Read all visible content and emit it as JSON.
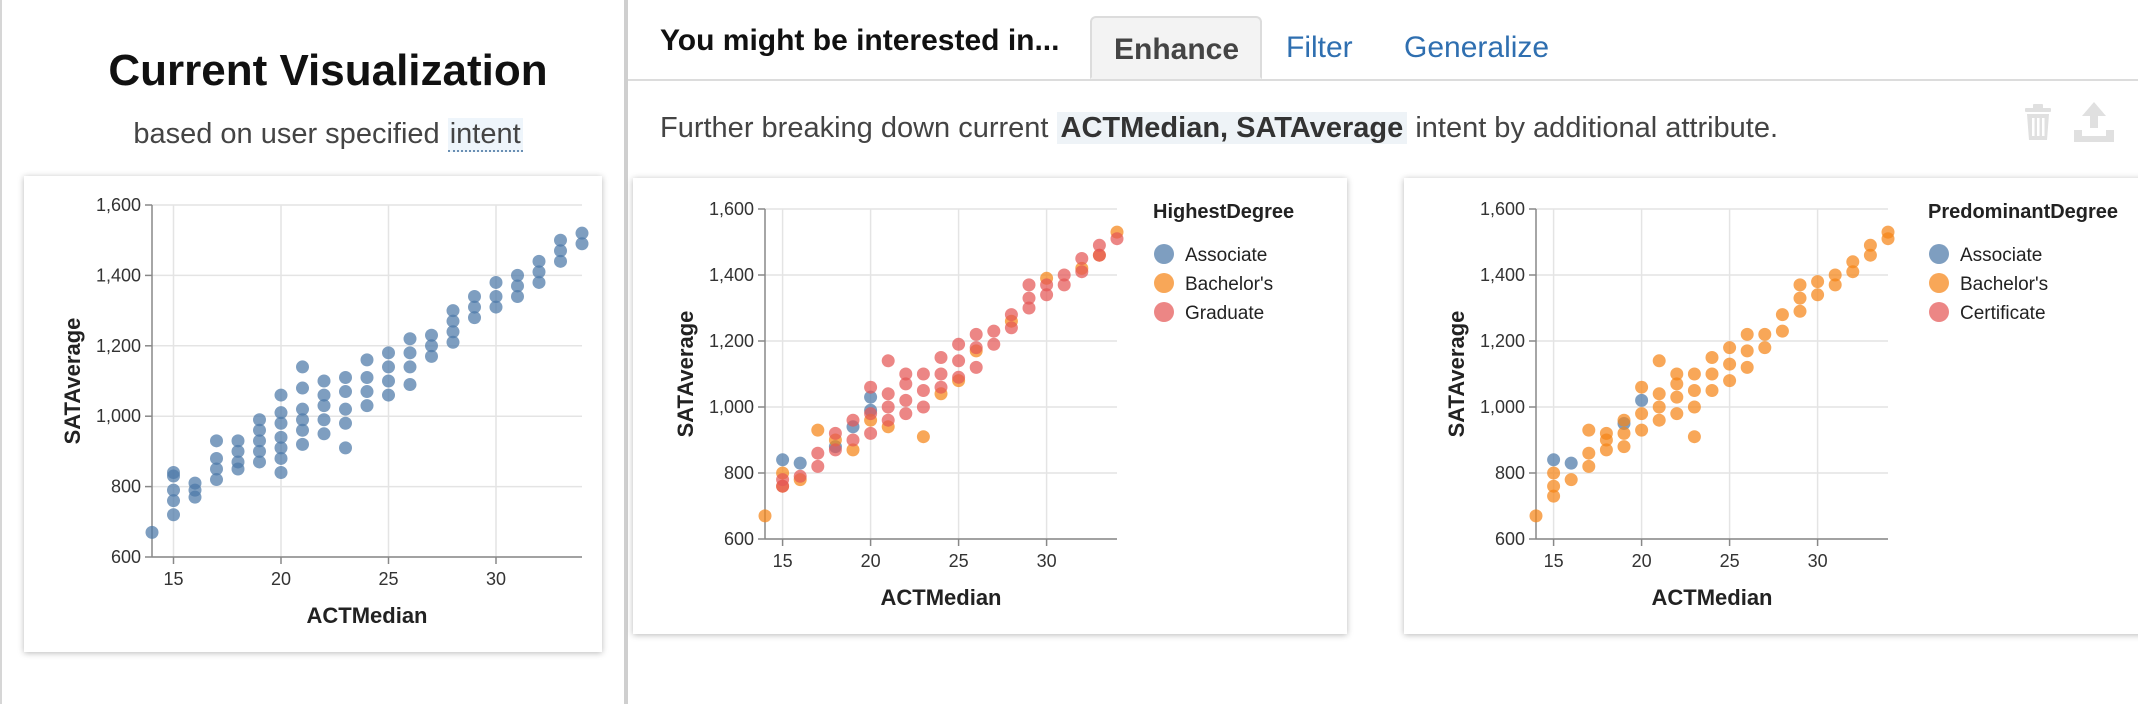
{
  "left": {
    "title": "Current Visualization",
    "subtitle_prefix": "based on user specified",
    "subtitle_intent": "intent"
  },
  "right": {
    "heading": "You might be interested in...",
    "tabs": [
      {
        "label": "Enhance",
        "active": true
      },
      {
        "label": "Filter",
        "active": false
      },
      {
        "label": "Generalize",
        "active": false
      }
    ],
    "description_prefix": "Further breaking down current",
    "description_highlight": "ACTMedian, SATAverage",
    "description_suffix": "intent by additional attribute.",
    "icons": [
      "trash-icon",
      "export-icon"
    ]
  },
  "colors": {
    "blue": "#4c78a8",
    "orange": "#f58518",
    "red": "#e45756",
    "link": "#2f6fb0"
  },
  "chart_data": [
    {
      "type": "scatter",
      "xlabel": "ACTMedian",
      "ylabel": "SATAverage",
      "xlim": [
        14,
        34
      ],
      "ylim": [
        600,
        1600
      ],
      "xticks": [
        "15",
        "20",
        "25",
        "30"
      ],
      "yticks": [
        "600",
        "800",
        "1,000",
        "1,200",
        "1,400",
        "1,600"
      ],
      "grid": true,
      "series": [
        {
          "color": "#4c78a8",
          "points": [
            [
              14,
              670
            ],
            [
              15,
              720
            ],
            [
              15,
              760
            ],
            [
              15,
              790
            ],
            [
              15,
              830
            ],
            [
              15,
              840
            ],
            [
              16,
              770
            ],
            [
              16,
              790
            ],
            [
              16,
              810
            ],
            [
              17,
              820
            ],
            [
              17,
              850
            ],
            [
              17,
              880
            ],
            [
              17,
              930
            ],
            [
              18,
              850
            ],
            [
              18,
              870
            ],
            [
              18,
              900
            ],
            [
              18,
              930
            ],
            [
              19,
              870
            ],
            [
              19,
              900
            ],
            [
              19,
              930
            ],
            [
              19,
              960
            ],
            [
              19,
              990
            ],
            [
              20,
              840
            ],
            [
              20,
              880
            ],
            [
              20,
              910
            ],
            [
              20,
              940
            ],
            [
              20,
              980
            ],
            [
              20,
              1010
            ],
            [
              20,
              1060
            ],
            [
              21,
              920
            ],
            [
              21,
              960
            ],
            [
              21,
              990
            ],
            [
              21,
              1020
            ],
            [
              21,
              1080
            ],
            [
              21,
              1140
            ],
            [
              22,
              950
            ],
            [
              22,
              990
            ],
            [
              22,
              1030
            ],
            [
              22,
              1060
            ],
            [
              22,
              1100
            ],
            [
              23,
              910
            ],
            [
              23,
              980
            ],
            [
              23,
              1020
            ],
            [
              23,
              1070
            ],
            [
              23,
              1110
            ],
            [
              24,
              1030
            ],
            [
              24,
              1070
            ],
            [
              24,
              1110
            ],
            [
              24,
              1160
            ],
            [
              25,
              1060
            ],
            [
              25,
              1100
            ],
            [
              25,
              1140
            ],
            [
              25,
              1180
            ],
            [
              26,
              1090
            ],
            [
              26,
              1140
            ],
            [
              26,
              1180
            ],
            [
              26,
              1220
            ],
            [
              27,
              1170
            ],
            [
              27,
              1200
            ],
            [
              27,
              1230
            ],
            [
              28,
              1210
            ],
            [
              28,
              1240
            ],
            [
              28,
              1270
            ],
            [
              28,
              1300
            ],
            [
              29,
              1280
            ],
            [
              29,
              1310
            ],
            [
              29,
              1340
            ],
            [
              30,
              1310
            ],
            [
              30,
              1340
            ],
            [
              30,
              1380
            ],
            [
              31,
              1340
            ],
            [
              31,
              1370
            ],
            [
              31,
              1400
            ],
            [
              32,
              1380
            ],
            [
              32,
              1410
            ],
            [
              32,
              1440
            ],
            [
              33,
              1440
            ],
            [
              33,
              1470
            ],
            [
              33,
              1500
            ],
            [
              34,
              1490
            ],
            [
              34,
              1520
            ]
          ]
        }
      ]
    },
    {
      "type": "scatter",
      "xlabel": "ACTMedian",
      "ylabel": "SATAverage",
      "legend_title": "HighestDegree",
      "legend_position": "right",
      "xlim": [
        14,
        34
      ],
      "ylim": [
        600,
        1600
      ],
      "xticks": [
        "15",
        "20",
        "25",
        "30"
      ],
      "yticks": [
        "600",
        "800",
        "1,000",
        "1,200",
        "1,400",
        "1,600"
      ],
      "grid": true,
      "series": [
        {
          "name": "Associate",
          "color": "#4c78a8",
          "points": [
            [
              15,
              840
            ],
            [
              16,
              830
            ],
            [
              18,
              880
            ],
            [
              19,
              940
            ],
            [
              20,
              1030
            ],
            [
              20,
              990
            ]
          ]
        },
        {
          "name": "Bachelor's",
          "color": "#f58518",
          "points": [
            [
              14,
              670
            ],
            [
              15,
              760
            ],
            [
              15,
              800
            ],
            [
              16,
              780
            ],
            [
              17,
              930
            ],
            [
              18,
              900
            ],
            [
              19,
              870
            ],
            [
              20,
              960
            ],
            [
              21,
              940
            ],
            [
              23,
              910
            ],
            [
              24,
              1040
            ],
            [
              25,
              1080
            ],
            [
              26,
              1170
            ],
            [
              28,
              1260
            ],
            [
              30,
              1390
            ],
            [
              32,
              1420
            ],
            [
              33,
              1460
            ],
            [
              34,
              1530
            ]
          ]
        },
        {
          "name": "Graduate",
          "color": "#e45756",
          "points": [
            [
              15,
              760
            ],
            [
              15,
              780
            ],
            [
              16,
              790
            ],
            [
              17,
              820
            ],
            [
              17,
              860
            ],
            [
              18,
              870
            ],
            [
              18,
              920
            ],
            [
              19,
              900
            ],
            [
              19,
              960
            ],
            [
              20,
              920
            ],
            [
              20,
              980
            ],
            [
              20,
              1060
            ],
            [
              21,
              960
            ],
            [
              21,
              1000
            ],
            [
              21,
              1040
            ],
            [
              21,
              1140
            ],
            [
              22,
              980
            ],
            [
              22,
              1020
            ],
            [
              22,
              1070
            ],
            [
              22,
              1100
            ],
            [
              23,
              1000
            ],
            [
              23,
              1050
            ],
            [
              23,
              1100
            ],
            [
              24,
              1060
            ],
            [
              24,
              1100
            ],
            [
              24,
              1150
            ],
            [
              25,
              1090
            ],
            [
              25,
              1140
            ],
            [
              25,
              1190
            ],
            [
              26,
              1120
            ],
            [
              26,
              1180
            ],
            [
              26,
              1220
            ],
            [
              27,
              1190
            ],
            [
              27,
              1230
            ],
            [
              28,
              1240
            ],
            [
              28,
              1280
            ],
            [
              29,
              1300
            ],
            [
              29,
              1330
            ],
            [
              29,
              1370
            ],
            [
              30,
              1340
            ],
            [
              30,
              1370
            ],
            [
              31,
              1370
            ],
            [
              31,
              1400
            ],
            [
              32,
              1410
            ],
            [
              32,
              1450
            ],
            [
              33,
              1460
            ],
            [
              33,
              1490
            ],
            [
              34,
              1510
            ]
          ]
        }
      ]
    },
    {
      "type": "scatter",
      "xlabel": "ACTMedian",
      "ylabel": "SATAverage",
      "legend_title": "PredominantDegree",
      "legend_position": "right",
      "xlim": [
        14,
        34
      ],
      "ylim": [
        600,
        1600
      ],
      "xticks": [
        "15",
        "20",
        "25",
        "30"
      ],
      "yticks": [
        "600",
        "800",
        "1,000",
        "1,200",
        "1,400",
        "1,600"
      ],
      "grid": true,
      "series": [
        {
          "name": "Associate",
          "color": "#4c78a8",
          "points": [
            [
              15,
              840
            ],
            [
              16,
              830
            ],
            [
              19,
              950
            ],
            [
              20,
              1020
            ]
          ]
        },
        {
          "name": "Bachelor's",
          "color": "#f58518",
          "points": [
            [
              14,
              670
            ],
            [
              15,
              730
            ],
            [
              15,
              760
            ],
            [
              15,
              800
            ],
            [
              16,
              780
            ],
            [
              17,
              820
            ],
            [
              17,
              860
            ],
            [
              17,
              930
            ],
            [
              18,
              870
            ],
            [
              18,
              900
            ],
            [
              18,
              920
            ],
            [
              19,
              880
            ],
            [
              19,
              920
            ],
            [
              19,
              960
            ],
            [
              20,
              930
            ],
            [
              20,
              980
            ],
            [
              20,
              1060
            ],
            [
              21,
              960
            ],
            [
              21,
              1000
            ],
            [
              21,
              1040
            ],
            [
              21,
              1140
            ],
            [
              22,
              980
            ],
            [
              22,
              1030
            ],
            [
              22,
              1070
            ],
            [
              22,
              1100
            ],
            [
              23,
              910
            ],
            [
              23,
              1000
            ],
            [
              23,
              1050
            ],
            [
              23,
              1100
            ],
            [
              24,
              1050
            ],
            [
              24,
              1100
            ],
            [
              24,
              1150
            ],
            [
              25,
              1080
            ],
            [
              25,
              1130
            ],
            [
              25,
              1180
            ],
            [
              26,
              1120
            ],
            [
              26,
              1170
            ],
            [
              26,
              1220
            ],
            [
              27,
              1180
            ],
            [
              27,
              1220
            ],
            [
              28,
              1230
            ],
            [
              28,
              1280
            ],
            [
              29,
              1290
            ],
            [
              29,
              1330
            ],
            [
              29,
              1370
            ],
            [
              30,
              1340
            ],
            [
              30,
              1380
            ],
            [
              31,
              1370
            ],
            [
              31,
              1400
            ],
            [
              32,
              1410
            ],
            [
              32,
              1440
            ],
            [
              33,
              1460
            ],
            [
              33,
              1490
            ],
            [
              34,
              1510
            ],
            [
              34,
              1530
            ]
          ]
        },
        {
          "name": "Certificate",
          "color": "#e45756",
          "points": []
        }
      ]
    }
  ]
}
